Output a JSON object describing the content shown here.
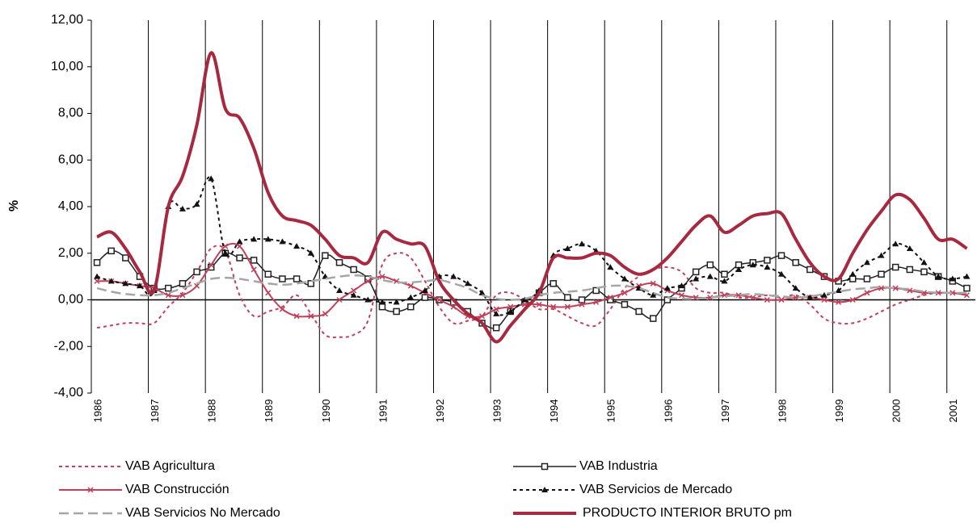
{
  "chart_data": {
    "type": "line",
    "y_label": "%",
    "categories": [
      "1986",
      null,
      null,
      null,
      "1987",
      null,
      null,
      null,
      "1988",
      null,
      null,
      null,
      "1989",
      null,
      null,
      null,
      "1990",
      null,
      null,
      null,
      "1991",
      null,
      null,
      null,
      "1992",
      null,
      null,
      null,
      "1993",
      null,
      null,
      null,
      "1994",
      null,
      null,
      null,
      "1995",
      null,
      null,
      null,
      "1996",
      null,
      null,
      null,
      "1997",
      null,
      null,
      null,
      "1998",
      null,
      null,
      null,
      "1999",
      null,
      null,
      null,
      "2000",
      null,
      null,
      null,
      "2001",
      null
    ],
    "ylim": [
      -4,
      12
    ],
    "yticks": [
      {
        "value": -4,
        "label": "-4,00"
      },
      {
        "value": -2,
        "label": "-2,00"
      },
      {
        "value": 0,
        "label": "0,00"
      },
      {
        "value": 2,
        "label": "2,00"
      },
      {
        "value": 4,
        "label": "4,00"
      },
      {
        "value": 6,
        "label": "6,00"
      },
      {
        "value": 8,
        "label": "8,00"
      },
      {
        "value": 10,
        "label": "10,00"
      },
      {
        "value": 12,
        "label": "12,00"
      }
    ],
    "grid": false,
    "legend": "bottom",
    "series": [
      {
        "name": "VAB Agricultura",
        "color": "#c0405a",
        "dash": "dotted",
        "width": 2,
        "marker": null,
        "values": [
          -1.2,
          -1.1,
          -1.0,
          -1.0,
          -1.0,
          -0.3,
          0.3,
          1.2,
          2.2,
          2.1,
          0.2,
          -0.7,
          -0.5,
          -0.3,
          0.2,
          -0.6,
          -1.5,
          -1.6,
          -1.5,
          -0.9,
          1.5,
          2.0,
          1.8,
          0.8,
          -0.3,
          -1.0,
          -0.9,
          -0.7,
          0.2,
          0.3,
          0.0,
          -0.4,
          -0.4,
          -0.7,
          -1.0,
          -1.1,
          -0.4,
          0.5,
          1.0,
          1.3,
          1.4,
          1.2,
          0.5,
          0.3,
          0.3,
          0.1,
          0.1,
          0.2,
          0.1,
          0.2,
          -0.2,
          -0.8,
          -1.0,
          -1.0,
          -0.8,
          -0.5,
          -0.2,
          0.0,
          0.2,
          0.3,
          0.3,
          0.2
        ]
      },
      {
        "name": "VAB Industria",
        "color": "#222222",
        "dash": "solid",
        "width": 1.5,
        "marker": "square",
        "values": [
          1.6,
          2.1,
          1.8,
          1.0,
          0.5,
          0.5,
          0.7,
          1.2,
          1.4,
          2.0,
          1.8,
          1.7,
          1.1,
          0.9,
          0.9,
          0.7,
          1.9,
          1.6,
          1.3,
          0.9,
          -0.3,
          -0.5,
          -0.3,
          0.1,
          0.0,
          -0.1,
          -0.5,
          -1.0,
          -1.2,
          -0.5,
          -0.1,
          0.3,
          0.7,
          0.1,
          0.0,
          0.4,
          0.0,
          -0.2,
          -0.5,
          -0.8,
          0.0,
          0.5,
          1.2,
          1.5,
          1.1,
          1.5,
          1.6,
          1.7,
          1.9,
          1.6,
          1.3,
          1.0,
          0.8,
          0.9,
          0.9,
          1.1,
          1.4,
          1.3,
          1.2,
          1.0,
          0.8,
          0.5
        ]
      },
      {
        "name": "VAB Construcción",
        "color": "#c0405a",
        "dash": "solid",
        "width": 2,
        "marker": "x",
        "values": [
          0.8,
          0.8,
          0.7,
          0.6,
          0.5,
          0.2,
          0.2,
          0.6,
          1.5,
          2.3,
          2.3,
          1.3,
          0.3,
          -0.4,
          -0.7,
          -0.7,
          -0.6,
          0.0,
          0.4,
          0.8,
          1.0,
          0.8,
          0.6,
          0.3,
          0.0,
          -0.3,
          -0.7,
          -0.7,
          -0.4,
          -0.3,
          -0.2,
          -0.2,
          -0.3,
          -0.3,
          -0.2,
          -0.1,
          0.1,
          0.3,
          0.6,
          0.7,
          0.4,
          0.2,
          0.1,
          0.1,
          0.2,
          0.2,
          0.1,
          0.0,
          0.0,
          0.1,
          0.1,
          0.0,
          -0.1,
          0.0,
          0.3,
          0.5,
          0.5,
          0.4,
          0.3,
          0.3,
          0.3,
          0.2
        ]
      },
      {
        "name": "VAB Servicios de Mercado",
        "color": "#111111",
        "dash": "dotted",
        "width": 2,
        "marker": "triangle",
        "values": [
          1.0,
          0.8,
          0.7,
          0.6,
          0.4,
          4.0,
          3.9,
          4.1,
          5.2,
          2.0,
          2.5,
          2.6,
          2.6,
          2.5,
          2.3,
          2.0,
          1.0,
          0.4,
          0.2,
          0.0,
          -0.1,
          -0.1,
          0.1,
          0.4,
          1.0,
          1.0,
          0.7,
          0.3,
          -0.6,
          -0.5,
          0.0,
          0.4,
          1.9,
          2.2,
          2.4,
          2.1,
          1.4,
          0.9,
          0.5,
          0.2,
          0.5,
          0.6,
          0.9,
          1.0,
          0.8,
          1.3,
          1.5,
          1.4,
          1.1,
          0.5,
          0.1,
          0.2,
          0.4,
          1.1,
          1.6,
          1.9,
          2.4,
          2.2,
          1.6,
          1.0,
          0.9,
          1.0
        ]
      },
      {
        "name": "VAB Servicios No Mercado",
        "color": "#a6a6a6",
        "dash": "dashed",
        "width": 2.5,
        "marker": null,
        "values": [
          0.5,
          0.35,
          0.25,
          0.2,
          0.2,
          0.3,
          0.5,
          0.7,
          0.9,
          0.95,
          0.9,
          0.8,
          0.7,
          0.65,
          0.7,
          0.8,
          0.9,
          1.0,
          1.05,
          1.0,
          0.85,
          0.75,
          0.75,
          0.8,
          0.85,
          0.7,
          0.5,
          0.2,
          0.05,
          0.0,
          0.05,
          0.2,
          0.3,
          0.35,
          0.4,
          0.5,
          0.6,
          0.6,
          0.5,
          0.3,
          0.1,
          0.05,
          0.05,
          0.1,
          0.15,
          0.2,
          0.25,
          0.2,
          0.15,
          0.1,
          0.15,
          0.25,
          0.35,
          0.45,
          0.5,
          0.55,
          0.5,
          0.45,
          0.35,
          0.3,
          0.3,
          0.3
        ]
      },
      {
        "name": "PRODUCTO INTERIOR BRUTO pm",
        "color": "#a8293f",
        "dash": "solid",
        "width": 4,
        "marker": null,
        "values": [
          2.7,
          2.9,
          2.2,
          1.2,
          0.4,
          4.0,
          5.3,
          7.5,
          10.6,
          8.2,
          7.8,
          6.5,
          4.6,
          3.6,
          3.4,
          3.2,
          2.6,
          1.9,
          1.8,
          1.6,
          2.9,
          2.6,
          2.4,
          2.3,
          0.8,
          0.0,
          -0.6,
          -1.0,
          -1.8,
          -1.1,
          -0.4,
          0.3,
          1.8,
          1.8,
          1.8,
          2.0,
          1.9,
          1.4,
          1.1,
          1.3,
          1.8,
          2.5,
          3.2,
          3.6,
          2.9,
          3.2,
          3.6,
          3.7,
          3.7,
          2.6,
          1.6,
          1.0,
          0.9,
          2.0,
          3.0,
          3.8,
          4.5,
          4.3,
          3.5,
          2.6,
          2.6,
          2.2
        ]
      }
    ]
  }
}
